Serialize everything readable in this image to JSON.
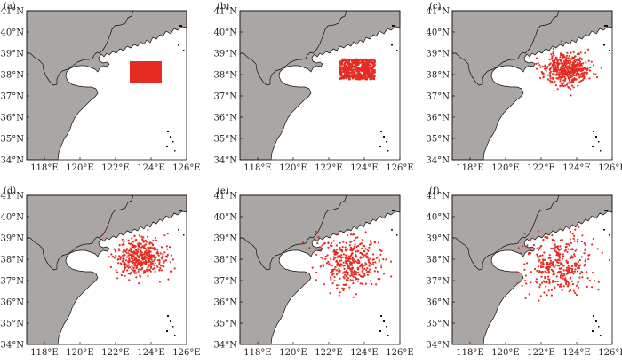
{
  "figure": {
    "xticks": [
      "118°E",
      "120°E",
      "122°E",
      "124°E",
      "126°E"
    ],
    "yticks": [
      "34°N",
      "35°N",
      "36°N",
      "37°N",
      "38°N",
      "39°N",
      "40°N",
      "41°N"
    ],
    "extent": {
      "lon": [
        117,
        126
      ],
      "lat": [
        34,
        41
      ]
    },
    "colors": {
      "land": "#a9a6a4",
      "sea": "#ffffff",
      "particles": "#e62b22",
      "coastline": "#111111"
    }
  },
  "panels": [
    {
      "label": "(a)",
      "content": "initial release rectangle",
      "release_box": {
        "lon": [
          122.8,
          124.7
        ],
        "lat": [
          37.8,
          38.75
        ]
      }
    },
    {
      "label": "(b)",
      "content": "particles",
      "approx_center": [
        123.6,
        38.25
      ],
      "spread": "compact"
    },
    {
      "label": "(c)",
      "content": "particles",
      "approx_center": [
        123.5,
        38.25
      ],
      "spread": "moderate"
    },
    {
      "label": "(d)",
      "content": "particles",
      "approx_center": [
        123.4,
        38.1
      ],
      "spread": "wider"
    },
    {
      "label": "(e)",
      "content": "particles",
      "approx_center": [
        123.2,
        37.9
      ],
      "spread": "wide"
    },
    {
      "label": "(f)",
      "content": "particles",
      "approx_center": [
        123.0,
        37.7
      ],
      "spread": "widest"
    }
  ]
}
